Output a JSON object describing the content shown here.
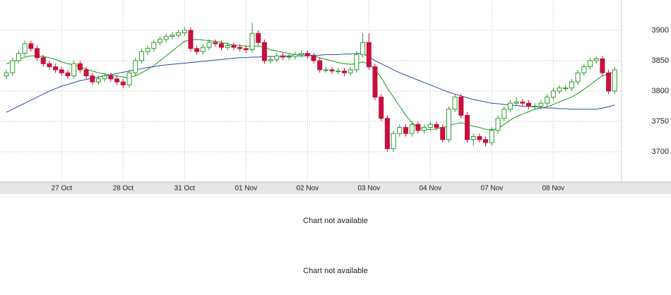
{
  "chart_data": {
    "type": "candlestick",
    "categories": [
      null,
      null,
      null,
      null,
      null,
      null,
      null,
      null,
      null,
      "27 Oct",
      null,
      null,
      null,
      null,
      null,
      null,
      null,
      null,
      null,
      "28 Oct",
      null,
      null,
      null,
      null,
      null,
      null,
      null,
      null,
      null,
      "31 Oct",
      null,
      null,
      null,
      null,
      null,
      null,
      null,
      null,
      null,
      "01 Nov",
      null,
      null,
      null,
      null,
      null,
      null,
      null,
      null,
      null,
      "02 Nov",
      null,
      null,
      null,
      null,
      null,
      null,
      null,
      null,
      null,
      "03 Nov",
      null,
      null,
      null,
      null,
      null,
      null,
      null,
      null,
      null,
      "04 Nov",
      null,
      null,
      null,
      null,
      null,
      null,
      null,
      null,
      null,
      "07 Nov",
      null,
      null,
      null,
      null,
      null,
      null,
      null,
      null,
      null,
      "08 Nov",
      null,
      null,
      null,
      null,
      null,
      null,
      null,
      null,
      null,
      null
    ],
    "open": [
      3825,
      3830,
      3850,
      3862,
      3878,
      3870,
      3855,
      3845,
      3840,
      3835,
      3830,
      3825,
      3845,
      3835,
      3825,
      3815,
      3820,
      3825,
      3820,
      3815,
      3810,
      3830,
      3850,
      3865,
      3870,
      3880,
      3885,
      3890,
      3892,
      3896,
      3900,
      3870,
      3865,
      3872,
      3880,
      3878,
      3872,
      3875,
      3872,
      3870,
      3868,
      3895,
      3880,
      3850,
      3852,
      3858,
      3856,
      3857,
      3860,
      3862,
      3858,
      3850,
      3835,
      3835,
      3833,
      3833,
      3830,
      3835,
      3860,
      3880,
      3840,
      3790,
      3755,
      3705,
      3730,
      3740,
      3730,
      3745,
      3735,
      3740,
      3745,
      3740,
      3720,
      3770,
      3790,
      3760,
      3720,
      3725,
      3720,
      3715,
      3735,
      3755,
      3770,
      3780,
      3782,
      3780,
      3775,
      3775,
      3780,
      3790,
      3800,
      3805,
      3805,
      3815,
      3830,
      3840,
      3850,
      3853,
      3830,
      3800
    ],
    "high": [
      3835,
      3855,
      3867,
      3883,
      3883,
      3875,
      3860,
      3850,
      3845,
      3840,
      3835,
      3850,
      3850,
      3840,
      3830,
      3825,
      3830,
      3830,
      3825,
      3820,
      3835,
      3855,
      3870,
      3875,
      3885,
      3890,
      3895,
      3897,
      3901,
      3905,
      3905,
      3875,
      3877,
      3885,
      3885,
      3883,
      3880,
      3880,
      3877,
      3875,
      3912,
      3900,
      3885,
      3857,
      3863,
      3863,
      3862,
      3865,
      3867,
      3867,
      3863,
      3855,
      3840,
      3840,
      3838,
      3838,
      3840,
      3865,
      3895,
      3895,
      3845,
      3795,
      3760,
      3735,
      3745,
      3745,
      3750,
      3750,
      3745,
      3750,
      3750,
      3745,
      3775,
      3795,
      3795,
      3765,
      3730,
      3730,
      3725,
      3740,
      3760,
      3775,
      3785,
      3790,
      3787,
      3785,
      3780,
      3785,
      3795,
      3805,
      3810,
      3810,
      3820,
      3835,
      3845,
      3855,
      3858,
      3858,
      3835,
      3840
    ],
    "low": [
      3820,
      3825,
      3845,
      3857,
      3865,
      3850,
      3840,
      3835,
      3830,
      3825,
      3820,
      3820,
      3830,
      3820,
      3810,
      3810,
      3815,
      3815,
      3810,
      3805,
      3805,
      3825,
      3845,
      3860,
      3865,
      3875,
      3880,
      3885,
      3887,
      3891,
      3865,
      3860,
      3860,
      3867,
      3873,
      3867,
      3867,
      3867,
      3865,
      3863,
      3863,
      3875,
      3845,
      3845,
      3847,
      3851,
      3851,
      3852,
      3855,
      3853,
      3845,
      3830,
      3830,
      3828,
      3828,
      3825,
      3825,
      3830,
      3855,
      3835,
      3785,
      3750,
      3700,
      3700,
      3725,
      3725,
      3725,
      3730,
      3730,
      3735,
      3735,
      3715,
      3715,
      3765,
      3755,
      3715,
      3710,
      3715,
      3708,
      3710,
      3730,
      3750,
      3765,
      3775,
      3775,
      3770,
      3770,
      3770,
      3775,
      3785,
      3795,
      3800,
      3800,
      3810,
      3825,
      3835,
      3845,
      3825,
      3795,
      3795
    ],
    "close": [
      3830,
      3850,
      3862,
      3878,
      3870,
      3855,
      3845,
      3840,
      3835,
      3830,
      3825,
      3845,
      3835,
      3825,
      3815,
      3820,
      3825,
      3820,
      3815,
      3810,
      3830,
      3850,
      3865,
      3870,
      3880,
      3885,
      3890,
      3892,
      3896,
      3900,
      3870,
      3865,
      3872,
      3880,
      3878,
      3872,
      3875,
      3872,
      3870,
      3868,
      3895,
      3880,
      3850,
      3852,
      3858,
      3856,
      3857,
      3860,
      3862,
      3858,
      3850,
      3835,
      3835,
      3833,
      3833,
      3830,
      3835,
      3860,
      3880,
      3840,
      3790,
      3755,
      3705,
      3730,
      3740,
      3730,
      3745,
      3735,
      3740,
      3745,
      3740,
      3720,
      3770,
      3790,
      3760,
      3720,
      3725,
      3720,
      3715,
      3735,
      3755,
      3770,
      3780,
      3782,
      3780,
      3775,
      3775,
      3780,
      3790,
      3800,
      3805,
      3805,
      3815,
      3830,
      3840,
      3850,
      3853,
      3830,
      3800,
      3835
    ],
    "up_color": "#2a9a2a",
    "down_color": "#c8103c",
    "lines": [
      {
        "color": "#119911",
        "values": [
          3845,
          3848,
          3852,
          3856,
          3858,
          3858,
          3857,
          3855,
          3852,
          3848,
          3845,
          3843,
          3840,
          3836,
          3833,
          3830,
          3828,
          3826,
          3825,
          3823,
          3822,
          3825,
          3830,
          3836,
          3842,
          3850,
          3858,
          3866,
          3874,
          3882,
          3884,
          3885,
          3884,
          3883,
          3882,
          3880,
          3878,
          3876,
          3875,
          3874,
          3874,
          3874,
          3872,
          3868,
          3866,
          3864,
          3862,
          3860,
          3860,
          3860,
          3858,
          3855,
          3852,
          3850,
          3847,
          3845,
          3844,
          3845,
          3848,
          3845,
          3835,
          3822,
          3805,
          3790,
          3775,
          3760,
          3748,
          3740,
          3738,
          3736,
          3738,
          3740,
          3742,
          3746,
          3748,
          3745,
          3742,
          3740,
          3737,
          3736,
          3738,
          3745,
          3752,
          3758,
          3762,
          3766,
          3770,
          3772,
          3774,
          3778,
          3782,
          3786,
          3790,
          3796,
          3803,
          3810,
          3818,
          3825,
          3828,
          3832
        ]
      },
      {
        "color": "#2a4aa8",
        "values": [
          3765,
          3770,
          3775,
          3780,
          3785,
          3790,
          3795,
          3800,
          3804,
          3808,
          3811,
          3814,
          3817,
          3819,
          3821,
          3823,
          3825,
          3827,
          3829,
          3831,
          3833,
          3835,
          3837,
          3839,
          3840,
          3842,
          3843,
          3844,
          3845,
          3846,
          3847,
          3848,
          3849,
          3850,
          3851,
          3852,
          3853,
          3854,
          3855,
          3855,
          3856,
          3856,
          3857,
          3857,
          3857,
          3857,
          3858,
          3858,
          3858,
          3858,
          3859,
          3859,
          3860,
          3860,
          3860,
          3861,
          3861,
          3862,
          3862,
          3856,
          3850,
          3845,
          3840,
          3835,
          3830,
          3826,
          3822,
          3818,
          3814,
          3810,
          3806,
          3802,
          3798,
          3795,
          3792,
          3789,
          3786,
          3784,
          3782,
          3780,
          3779,
          3778,
          3777,
          3776,
          3775,
          3775,
          3774,
          3773,
          3772,
          3772,
          3771,
          3771,
          3770,
          3770,
          3770,
          3770,
          3770,
          3772,
          3774,
          3777
        ]
      }
    ],
    "ylim": [
      3650,
      3950
    ],
    "yticks": [
      3700,
      3750,
      3800,
      3850,
      3900
    ],
    "grid": true
  },
  "messages": [
    "Chart not available",
    "Chart not available"
  ]
}
